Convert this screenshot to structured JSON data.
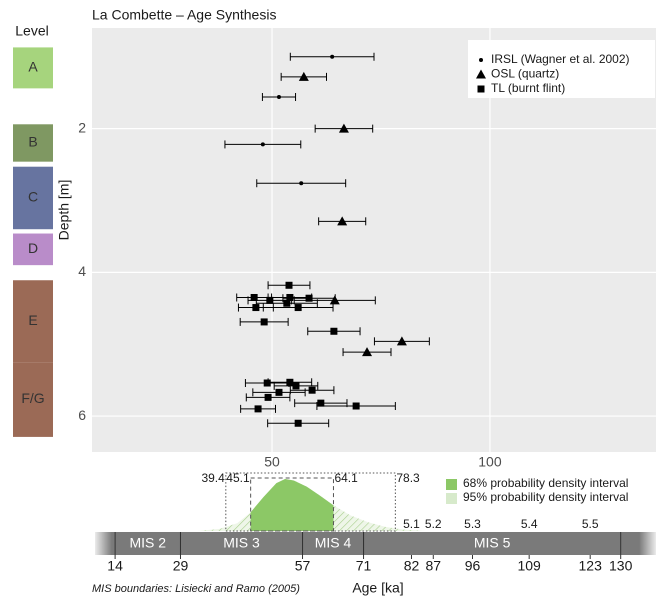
{
  "chart_data": {
    "type": "scatter",
    "title": "La Combette – Age Synthesis",
    "y_label": "Depth [m]",
    "x_label": "Age [ka]",
    "xlim": [
      8.7,
      138.1
    ],
    "ylim": [
      6.5,
      0.6
    ],
    "xticks": [
      50,
      100
    ],
    "yticks": [
      2,
      4,
      6
    ],
    "grid": true,
    "legend": "top-right",
    "series": [
      {
        "name": "IRSL (Wagner et al. 2002)",
        "marker": "circle",
        "color": "#000000",
        "x": [
          63.8,
          51.6,
          47.9,
          56.7
        ],
        "y": [
          1.0,
          1.56,
          2.22,
          2.76
        ],
        "error": [
          9.6,
          3.8,
          8.7,
          10.2
        ]
      },
      {
        "name": "OSL (quartz)",
        "marker": "triangle",
        "color": "#000000",
        "x": [
          57.3,
          66.5,
          66.1,
          64.4,
          79.8,
          71.8
        ],
        "y": [
          1.28,
          2.0,
          3.29,
          4.39,
          4.96,
          5.11
        ],
        "error": [
          5.2,
          6.6,
          5.4,
          9.3,
          6.3,
          5.5
        ]
      },
      {
        "name": "TL (burnt flint)",
        "marker": "square",
        "color": "#000000",
        "x": [
          53.9,
          45.9,
          54.1,
          58.5,
          49.5,
          53.4,
          46.3,
          56.0,
          48.2,
          64.2,
          48.9,
          54.1,
          55.5,
          51.6,
          59.2,
          49.1,
          61.2,
          69.3,
          46.8,
          56.0
        ],
        "y": [
          4.18,
          4.35,
          4.35,
          4.36,
          4.39,
          4.43,
          4.49,
          4.49,
          4.69,
          4.82,
          5.54,
          5.53,
          5.58,
          5.67,
          5.64,
          5.74,
          5.82,
          5.86,
          5.9,
          6.1
        ],
        "error": [
          4.8,
          4.0,
          5.0,
          6.0,
          5.0,
          7.0,
          4.0,
          8.0,
          5.5,
          6.0,
          5.0,
          5.0,
          5.0,
          6.0,
          5.0,
          5.0,
          6.0,
          9.0,
          4.0,
          7.0
        ]
      }
    ],
    "levels": {
      "title": "Level",
      "items": [
        {
          "label": "A",
          "color": "#a6d47d",
          "depth": [
            0.87,
            1.44
          ]
        },
        {
          "label": "B",
          "color": "#7f9862",
          "depth": [
            1.94,
            2.46
          ]
        },
        {
          "label": "C",
          "color": "#6774a0",
          "depth": [
            2.53,
            3.4
          ]
        },
        {
          "label": "D",
          "color": "#b98cc9",
          "depth": [
            3.46,
            3.9
          ]
        },
        {
          "label": "E",
          "color": "#9b6a56",
          "depth": [
            4.11,
            5.25
          ]
        },
        {
          "label": "F/G",
          "color": "#9b6a56",
          "depth": [
            5.25,
            6.29
          ]
        }
      ]
    },
    "density": {
      "x": [
        33,
        38,
        42,
        45,
        48,
        51,
        53,
        55,
        58,
        61,
        64,
        68,
        72,
        76,
        80,
        85
      ],
      "y": [
        0,
        0.04,
        0.15,
        0.35,
        0.65,
        0.92,
        1.0,
        0.97,
        0.85,
        0.68,
        0.5,
        0.3,
        0.17,
        0.08,
        0.03,
        0
      ]
    },
    "intervals": [
      {
        "name": "68% probability density interval",
        "range": [
          45.1,
          64.1
        ],
        "color": "#8cc866",
        "style": "dashed"
      },
      {
        "name": "95% probability density interval",
        "range": [
          39.4,
          78.3
        ],
        "color": "#d7eacb",
        "style": "dotted"
      }
    ],
    "mis": {
      "boundaries": [
        14,
        29,
        57,
        71,
        82,
        87,
        96,
        109,
        123,
        130
      ],
      "stages": [
        {
          "label": "MIS 2",
          "range": [
            14,
            29
          ]
        },
        {
          "label": "MIS 3",
          "range": [
            29,
            57
          ]
        },
        {
          "label": "MIS 4",
          "range": [
            57,
            71
          ]
        },
        {
          "label": "MIS 5",
          "range": [
            71,
            130
          ]
        }
      ],
      "substages": [
        "5.1",
        "5.2",
        "5.3",
        "5.4",
        "5.5"
      ],
      "note": "MIS boundaries: Lisiecki and Ramo (2005)"
    }
  }
}
